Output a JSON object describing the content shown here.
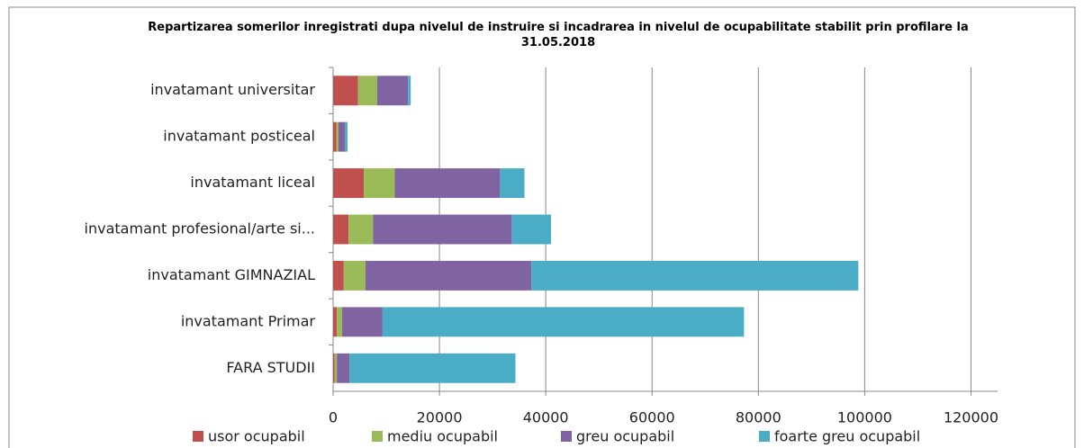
{
  "chart_data": {
    "type": "stacked-bar-horizontal",
    "title": "Repartizarea somerilor inregistrati dupa  nivelul de instruire si incadrarea in nivelul de ocupabilitate stabilit prin profilare la 31.05.2018",
    "categories": [
      "invatamant universitar",
      "invatamant posticeal",
      "invatamant liceal",
      "invatamant profesional/arte si...",
      "invatamant GIMNAZIAL",
      "invatamant Primar",
      "FARA STUDII"
    ],
    "series": [
      {
        "name": "usor ocupabil",
        "color": "#c0504d",
        "values": [
          4700,
          600,
          5800,
          2900,
          2000,
          700,
          300
        ]
      },
      {
        "name": "mediu ocupabil",
        "color": "#9bbb59",
        "values": [
          3600,
          400,
          5800,
          4600,
          4100,
          1000,
          400
        ]
      },
      {
        "name": "greu ocupabil",
        "color": "#8064a2",
        "values": [
          5800,
          1200,
          19800,
          26100,
          31200,
          7600,
          2400
        ]
      },
      {
        "name": "foarte greu ocupabil",
        "color": "#4bacc6",
        "values": [
          500,
          500,
          4600,
          7400,
          61500,
          68000,
          31200
        ]
      }
    ],
    "xlim": [
      0,
      125000
    ],
    "xticks": [
      0,
      20000,
      40000,
      60000,
      80000,
      100000,
      120000
    ],
    "grid": true,
    "legend": "bottom"
  }
}
